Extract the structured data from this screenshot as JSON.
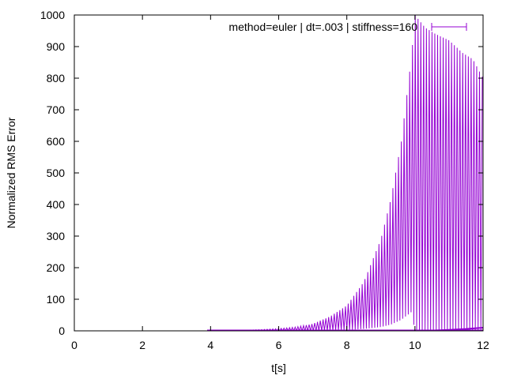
{
  "chart_data": {
    "type": "line",
    "title": "",
    "xlabel": "t[s]",
    "ylabel": "Normalized RMS Error",
    "xlim": [
      0,
      12
    ],
    "ylim": [
      0,
      1000
    ],
    "x_ticks": [
      "0",
      "2",
      "4",
      "6",
      "8",
      "10",
      "12"
    ],
    "y_ticks": [
      "0",
      "100",
      "200",
      "300",
      "400",
      "500",
      "600",
      "700",
      "800",
      "900",
      "1000"
    ],
    "grid": false,
    "legend_position": "top-right",
    "series": [
      {
        "name": "method=euler | dt=.003 | stiffness=160",
        "color": "#9400d3",
        "envelope": {
          "x": [
            3.9,
            4.5,
            5.0,
            5.5,
            6.0,
            6.5,
            7.0,
            7.5,
            8.0,
            8.5,
            9.0,
            9.3,
            9.6,
            9.9,
            10.0,
            10.3,
            10.6,
            11.0,
            11.4,
            11.7,
            12.0
          ],
          "y_max": [
            0,
            1,
            2,
            4,
            7,
            12,
            22,
            45,
            80,
            155,
            290,
            420,
            600,
            870,
            1000,
            960,
            940,
            920,
            880,
            860,
            800
          ],
          "y_min": [
            0,
            0,
            0,
            0,
            0,
            0,
            0,
            1,
            2,
            6,
            12,
            20,
            35,
            60,
            0,
            0,
            0,
            0,
            0,
            0,
            0
          ]
        },
        "tail_trace": {
          "x": [
            10.0,
            10.5,
            11.0,
            11.5,
            12.0
          ],
          "y": [
            0,
            1,
            3,
            6,
            10
          ]
        }
      }
    ]
  }
}
